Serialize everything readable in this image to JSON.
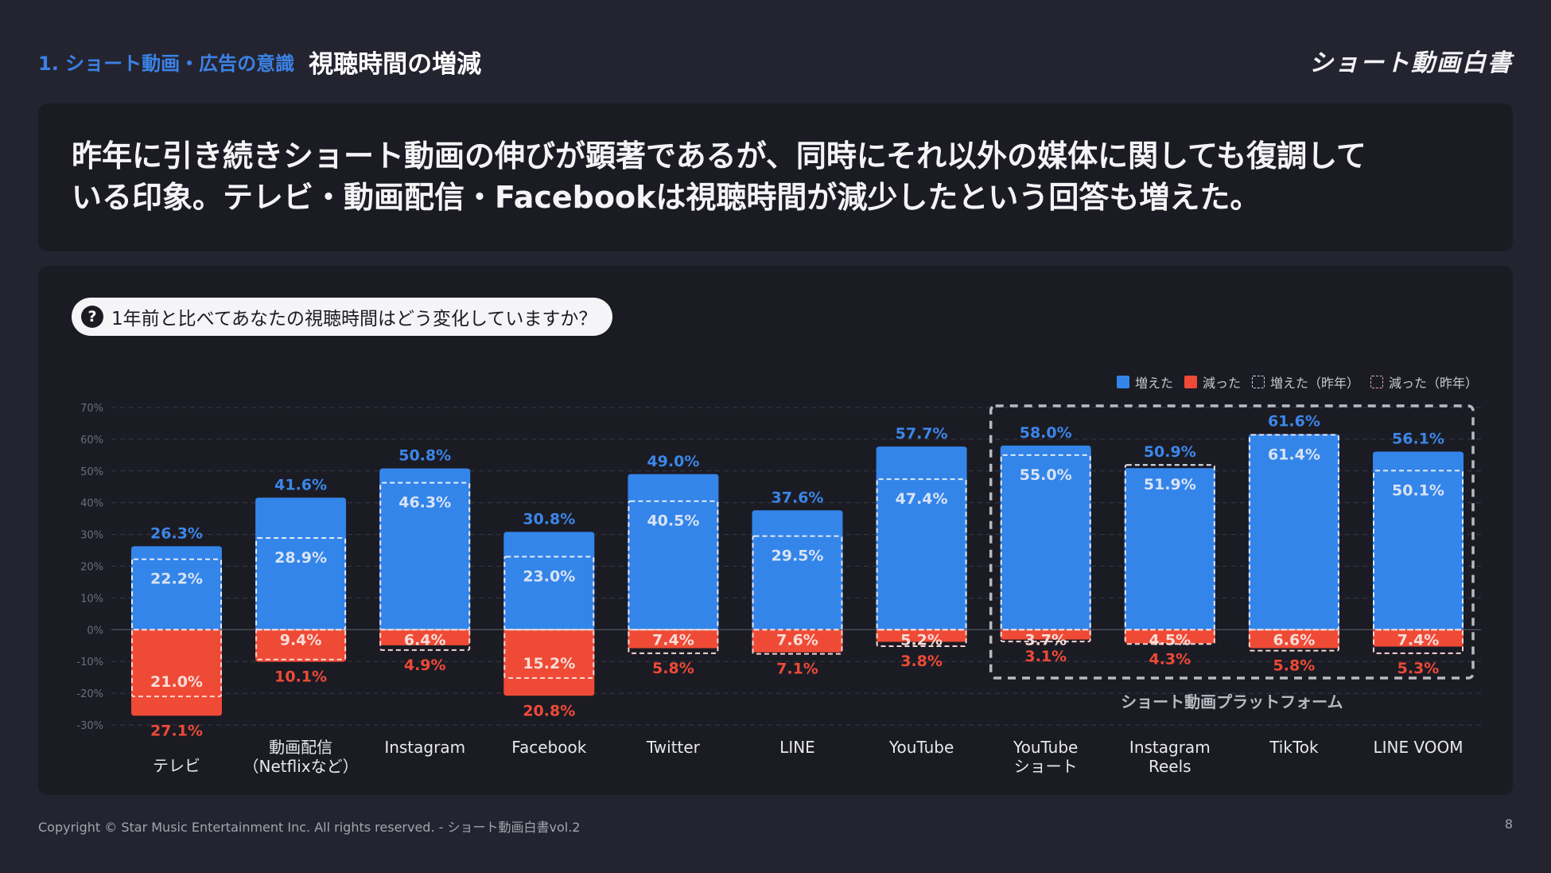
{
  "header": {
    "section": "1. ショート動画・広告の意識",
    "title": "視聴時間の増減",
    "logo": "ショート動画白書"
  },
  "summary": {
    "line1": "昨年に引き続きショート動画の伸びが顕著であるが、同時にそれ以外の媒体に関しても復調して",
    "line2": "いる印象。テレビ・動画配信・Facebookは視聴時間が減少したという回答も増えた。"
  },
  "question": {
    "icon": "question-icon",
    "text": "1年前と比べてあなたの視聴時間はどう変化していますか？"
  },
  "colors": {
    "increase": "#3385ea",
    "decrease": "#ef4a36",
    "increase_label": "#3b87e8",
    "decrease_label": "#ef4a36",
    "prev_label": "#d9e3f5"
  },
  "chart_data": {
    "type": "bar",
    "title": "1年前と比べてあなたの視聴時間はどう変化していますか？",
    "xlabel": "",
    "ylabel": "",
    "ylim": [
      -30,
      70
    ],
    "yticks": [
      70,
      60,
      50,
      40,
      30,
      20,
      10,
      0,
      -10,
      -20,
      -30
    ],
    "ytick_labels": [
      "70%",
      "60%",
      "50%",
      "40%",
      "30%",
      "20%",
      "10%",
      "0%",
      "-10%",
      "-20%",
      "-30%"
    ],
    "grid": true,
    "legend_position": "top-right",
    "legend": [
      "増えた",
      "減った",
      "増えた（昨年）",
      "減った（昨年）"
    ],
    "categories": [
      [
        "テレビ"
      ],
      [
        "動画配信",
        "（Netflixなど）"
      ],
      [
        "Instagram"
      ],
      [
        "Facebook"
      ],
      [
        "Twitter"
      ],
      [
        "LINE"
      ],
      [
        "YouTube"
      ],
      [
        "YouTube",
        "ショート"
      ],
      [
        "Instagram",
        "Reels"
      ],
      [
        "TikTok"
      ],
      [
        "LINE VOOM"
      ]
    ],
    "series": [
      {
        "name": "増えた",
        "values": [
          26.3,
          41.6,
          50.8,
          30.8,
          49.0,
          37.6,
          57.7,
          58.0,
          50.9,
          61.6,
          56.1
        ]
      },
      {
        "name": "減った",
        "values": [
          27.1,
          10.1,
          4.9,
          20.8,
          5.8,
          7.1,
          3.8,
          3.1,
          4.3,
          5.8,
          5.3
        ]
      },
      {
        "name": "増えた（昨年）",
        "values": [
          22.2,
          28.9,
          46.3,
          23.0,
          40.5,
          29.5,
          47.4,
          55.0,
          51.9,
          61.4,
          50.1
        ]
      },
      {
        "name": "減った（昨年）",
        "values": [
          21.0,
          9.4,
          6.4,
          15.2,
          7.4,
          7.6,
          5.2,
          3.7,
          4.5,
          6.6,
          7.4
        ]
      }
    ],
    "group_annotation": {
      "label": "ショート動画プラットフォーム",
      "from_category": 7,
      "to_category": 10
    }
  },
  "footer": {
    "copyright": "Copyright © Star Music Entertainment Inc. All rights reserved. - ショート動画白書vol.2",
    "page": "8"
  }
}
